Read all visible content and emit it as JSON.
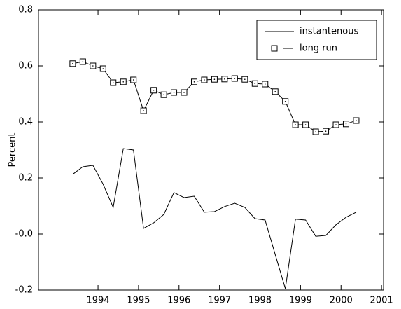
{
  "chart_data": {
    "type": "line",
    "ylabel": "Percent",
    "x": [
      1993.375,
      1993.625,
      1993.875,
      1994.125,
      1994.375,
      1994.625,
      1994.875,
      1995.125,
      1995.375,
      1995.625,
      1995.875,
      1996.125,
      1996.375,
      1996.625,
      1996.875,
      1997.125,
      1997.375,
      1997.625,
      1997.875,
      1998.125,
      1998.375,
      1998.625,
      1998.875,
      1999.125,
      1999.375,
      1999.625,
      1999.875,
      2000.125,
      2000.375
    ],
    "series": [
      {
        "name": "instantenous",
        "color": "#000000",
        "marker": "none",
        "values": [
          0.213,
          0.24,
          0.245,
          0.178,
          0.095,
          0.305,
          0.3,
          0.02,
          0.04,
          0.07,
          0.148,
          0.13,
          0.135,
          0.078,
          0.08,
          0.098,
          0.11,
          0.095,
          0.055,
          0.05,
          -0.073,
          -0.195,
          0.053,
          0.05,
          -0.008,
          -0.005,
          0.033,
          0.06,
          0.078
        ]
      },
      {
        "name": "long run",
        "color": "#000000",
        "marker": "square",
        "values": [
          0.608,
          0.615,
          0.6,
          0.59,
          0.54,
          0.543,
          0.55,
          0.44,
          0.513,
          0.497,
          0.505,
          0.505,
          0.543,
          0.55,
          0.552,
          0.553,
          0.555,
          0.552,
          0.537,
          0.535,
          0.508,
          0.473,
          0.39,
          0.39,
          0.365,
          0.367,
          0.39,
          0.393,
          0.405
        ]
      }
    ],
    "xlim": [
      1992.53,
      2001.05
    ],
    "xticks": [
      1994,
      1995,
      1996,
      1997,
      1998,
      1999,
      2000,
      2001
    ],
    "ylim": [
      -0.2,
      0.8
    ],
    "yticks": [
      -0.2,
      {
        "value": 0,
        "label": "-0.0"
      },
      0.2,
      0.4,
      0.6,
      0.8
    ],
    "legend": "upper right"
  }
}
